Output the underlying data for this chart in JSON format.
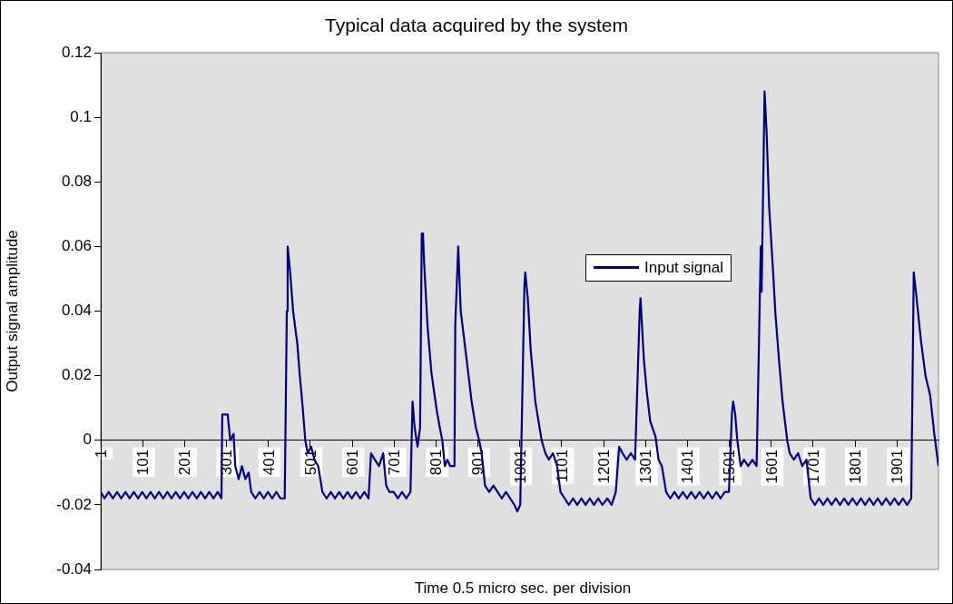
{
  "chart_data": {
    "type": "line",
    "title": "Typical data acquired by the system",
    "xlabel": "Time 0.5 micro sec. per division",
    "ylabel": "Output signal amplitude",
    "xlim": [
      1,
      2000
    ],
    "xticks": [
      1,
      101,
      201,
      301,
      401,
      501,
      601,
      701,
      801,
      901,
      1001,
      1101,
      1201,
      1301,
      1401,
      1501,
      1601,
      1701,
      1801,
      1901
    ],
    "ylim": [
      -0.04,
      0.12
    ],
    "yticks": [
      -0.04,
      -0.02,
      0,
      0.02,
      0.04,
      0.06,
      0.08,
      0.1,
      0.12
    ],
    "grid": false,
    "legend": "right",
    "marker": "none",
    "series": [
      {
        "name": "Input signal",
        "color": "#000080",
        "x": [
          1,
          10,
          20,
          30,
          40,
          50,
          60,
          70,
          80,
          90,
          100,
          110,
          120,
          130,
          140,
          150,
          160,
          170,
          180,
          190,
          200,
          210,
          220,
          230,
          240,
          250,
          260,
          270,
          280,
          289,
          291,
          304,
          310,
          318,
          322,
          330,
          338,
          346,
          354,
          360,
          370,
          380,
          390,
          400,
          410,
          420,
          430,
          440,
          445,
          447,
          453,
          460,
          470,
          476,
          483,
          489,
          495,
          503,
          511,
          520,
          530,
          540,
          550,
          560,
          570,
          580,
          590,
          600,
          610,
          620,
          630,
          640,
          646,
          655,
          665,
          675,
          682,
          690,
          700,
          710,
          720,
          730,
          740,
          745,
          750,
          757,
          763,
          767,
          770,
          773,
          781,
          790,
          803,
          810,
          816,
          822,
          828,
          835,
          845,
          847,
          854,
          860,
          875,
          886,
          896,
          904,
          910,
          918,
          928,
          938,
          948,
          958,
          968,
          978,
          988,
          995,
          1002,
          1012,
          1014,
          1020,
          1027,
          1038,
          1053,
          1062,
          1070,
          1080,
          1090,
          1098,
          1108,
          1118,
          1128,
          1138,
          1148,
          1158,
          1168,
          1178,
          1188,
          1198,
          1210,
          1220,
          1230,
          1238,
          1246,
          1256,
          1266,
          1276,
          1287,
          1289,
          1297,
          1304,
          1312,
          1325,
          1332,
          1340,
          1350,
          1360,
          1370,
          1380,
          1390,
          1400,
          1410,
          1420,
          1430,
          1440,
          1450,
          1460,
          1470,
          1480,
          1490,
          1500,
          1507,
          1510,
          1515,
          1520,
          1528,
          1536,
          1546,
          1556,
          1566,
          1576,
          1578,
          1585,
          1590,
          1596,
          1605,
          1611,
          1620,
          1628,
          1639,
          1645,
          1655,
          1665,
          1675,
          1685,
          1695,
          1705,
          1715,
          1725,
          1735,
          1745,
          1755,
          1765,
          1775,
          1785,
          1795,
          1805,
          1815,
          1825,
          1835,
          1845,
          1855,
          1865,
          1875,
          1885,
          1895,
          1905,
          1915,
          1925,
          1935,
          1941,
          1947,
          1958,
          1969,
          1980,
          1990,
          1998,
          2000
        ],
        "values": [
          -0.016,
          -0.018,
          -0.016,
          -0.018,
          -0.016,
          -0.018,
          -0.016,
          -0.018,
          -0.016,
          -0.018,
          -0.016,
          -0.018,
          -0.016,
          -0.018,
          -0.016,
          -0.018,
          -0.016,
          -0.018,
          -0.016,
          -0.018,
          -0.016,
          -0.018,
          -0.016,
          -0.018,
          -0.016,
          -0.018,
          -0.016,
          -0.018,
          -0.016,
          -0.018,
          0.008,
          0.008,
          0,
          0.002,
          -0.008,
          -0.012,
          -0.008,
          -0.012,
          -0.01,
          -0.016,
          -0.018,
          -0.016,
          -0.018,
          -0.016,
          -0.018,
          -0.016,
          -0.018,
          -0.018,
          0.04,
          0.06,
          0.052,
          0.04,
          0.03,
          0.02,
          0.01,
          0,
          -0.004,
          -0.002,
          -0.006,
          -0.008,
          -0.016,
          -0.018,
          -0.016,
          -0.018,
          -0.016,
          -0.018,
          -0.016,
          -0.018,
          -0.016,
          -0.018,
          -0.016,
          -0.018,
          -0.004,
          -0.006,
          -0.008,
          -0.004,
          -0.014,
          -0.016,
          -0.016,
          -0.018,
          -0.016,
          -0.018,
          -0.016,
          0.012,
          0.004,
          -0.002,
          0.004,
          0.064,
          0.064,
          0.054,
          0.035,
          0.021,
          0.009,
          0.004,
          0,
          -0.008,
          -0.006,
          -0.008,
          -0.008,
          0.036,
          0.06,
          0.04,
          0.024,
          0.012,
          0.004,
          0,
          -0.004,
          -0.014,
          -0.016,
          -0.014,
          -0.016,
          -0.018,
          -0.016,
          -0.018,
          -0.02,
          -0.022,
          -0.02,
          0.048,
          0.052,
          0.044,
          0.028,
          0.012,
          0,
          -0.004,
          -0.006,
          -0.004,
          -0.008,
          -0.016,
          -0.018,
          -0.02,
          -0.018,
          -0.02,
          -0.018,
          -0.02,
          -0.018,
          -0.02,
          -0.018,
          -0.02,
          -0.018,
          -0.02,
          -0.016,
          -0.002,
          -0.004,
          -0.006,
          -0.004,
          -0.006,
          0.04,
          0.044,
          0.025,
          0.015,
          0.006,
          0.001,
          -0.006,
          -0.008,
          -0.016,
          -0.018,
          -0.016,
          -0.018,
          -0.016,
          -0.018,
          -0.016,
          -0.018,
          -0.016,
          -0.018,
          -0.016,
          -0.018,
          -0.016,
          -0.018,
          -0.016,
          -0.016,
          0.008,
          0.012,
          0.008,
          0,
          -0.008,
          -0.006,
          -0.008,
          -0.006,
          -0.008,
          0.06,
          0.046,
          0.108,
          0.095,
          0.072,
          0.053,
          0.039,
          0.024,
          0.012,
          0,
          -0.004,
          -0.006,
          -0.004,
          -0.008,
          -0.006,
          -0.018,
          -0.02,
          -0.018,
          -0.02,
          -0.018,
          -0.02,
          -0.018,
          -0.02,
          -0.018,
          -0.02,
          -0.018,
          -0.02,
          -0.018,
          -0.02,
          -0.018,
          -0.02,
          -0.018,
          -0.02,
          -0.018,
          -0.02,
          -0.018,
          -0.02,
          -0.018,
          -0.02,
          -0.018,
          0.052,
          0.045,
          0.031,
          0.02,
          0.014,
          0.002,
          -0.006,
          -0.008
        ]
      }
    ]
  }
}
